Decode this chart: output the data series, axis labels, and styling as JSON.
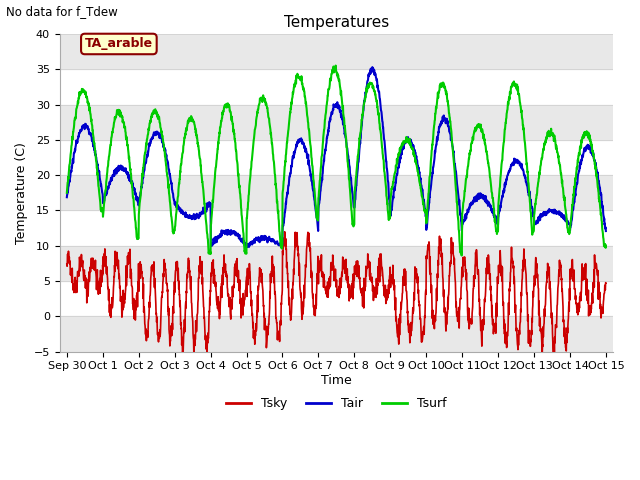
{
  "title": "Temperatures",
  "xlabel": "Time",
  "ylabel": "Temperature (C)",
  "note": "No data for f_Tdew",
  "annotation": "TA_arable",
  "ylim": [
    -5,
    40
  ],
  "x_tick_labels": [
    "Sep 30",
    "Oct 1",
    "Oct 2",
    "Oct 3",
    "Oct 4",
    "Oct 5",
    "Oct 6",
    "Oct 7",
    "Oct 8",
    "Oct 9",
    "Oct 10",
    "Oct 11",
    "Oct 12",
    "Oct 13",
    "Oct 14",
    "Oct 15"
  ],
  "x_tick_positions": [
    0,
    1,
    2,
    3,
    4,
    5,
    6,
    7,
    8,
    9,
    10,
    11,
    12,
    13,
    14,
    15
  ],
  "color_tsky": "#cc0000",
  "color_tair": "#0000cc",
  "color_tsurf": "#00cc00",
  "annotation_bg": "#ffffcc",
  "annotation_border": "#8b0000",
  "band_color": "#e8e8e8",
  "tair_peaks": [
    27,
    21,
    26,
    14,
    12,
    11,
    25,
    30,
    35,
    25,
    28,
    17,
    22,
    15,
    24,
    13
  ],
  "tair_mins": [
    17,
    16,
    16,
    16,
    10,
    10,
    12,
    15,
    15,
    14,
    12,
    13,
    14,
    13,
    12,
    9
  ],
  "tsurf_peaks": [
    32,
    29,
    29,
    28,
    30,
    31,
    34,
    35,
    33,
    25,
    33,
    27,
    33,
    26,
    26,
    9
  ],
  "tsurf_mins": [
    15,
    11,
    12,
    9,
    9,
    10,
    14,
    13,
    14,
    15,
    9,
    12,
    12,
    12,
    10,
    9
  ],
  "tsky_highs": [
    8,
    8.5,
    7,
    7.5,
    7,
    6.5,
    11,
    7.5,
    7,
    6,
    10,
    8,
    8,
    7,
    7,
    7
  ],
  "tsky_lows": [
    4,
    0.5,
    -3,
    -4,
    1,
    -3,
    0.5,
    3,
    3,
    -3,
    -1,
    -2,
    -4,
    -4,
    0.5,
    -2
  ]
}
